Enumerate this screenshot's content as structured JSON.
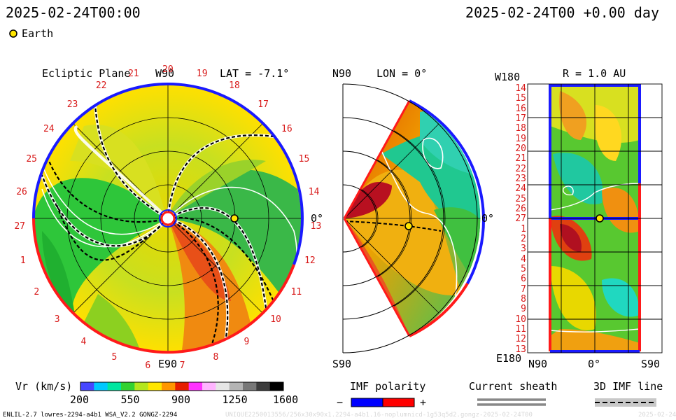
{
  "header": {
    "left_time": "2025-02-24T00:00",
    "right_time": "2025-02-24T00 +0.00 day",
    "earth_label": "Earth"
  },
  "panels": {
    "ecliptic": {
      "title": "Ecliptic Plane",
      "lat_label": "LAT = -7.1°",
      "w90": "W90",
      "e90": "E90",
      "zero": "0°"
    },
    "meridional": {
      "n90": "N90",
      "lon_label": "LON = 0°",
      "s90": "S90",
      "zero": "0°"
    },
    "radial": {
      "w180": "W180",
      "r_label": "R = 1.0 AU",
      "e180": "E180",
      "n90": "N90",
      "zero": "0°",
      "s90": "S90"
    }
  },
  "carrington_ticks_ecliptic": [
    "20",
    "21",
    "22",
    "23",
    "24",
    "25",
    "26",
    "27",
    "1",
    "2",
    "3",
    "4",
    "5",
    "6",
    "7",
    "8",
    "9",
    "10",
    "11",
    "12",
    "13",
    "14",
    "15",
    "16",
    "17",
    "18",
    "19"
  ],
  "carrington_ticks_radial": [
    "14",
    "15",
    "16",
    "17",
    "18",
    "19",
    "20",
    "21",
    "22",
    "23",
    "24",
    "25",
    "26",
    "27",
    "1",
    "2",
    "3",
    "4",
    "5",
    "6",
    "7",
    "8",
    "9",
    "10",
    "11",
    "12",
    "13"
  ],
  "legend": {
    "colorbar_label": "Vr (km/s)",
    "colorbar_ticks": [
      "200",
      "550",
      "900",
      "1250",
      "1600"
    ],
    "colorbar_colors": [
      "#4646ff",
      "#00c8ff",
      "#00e6a0",
      "#32d232",
      "#b4e61e",
      "#ffe600",
      "#ff9600",
      "#e61e00",
      "#ff32ff",
      "#ffb4ff",
      "#e6e6e6",
      "#b4b4b4",
      "#787878",
      "#3c3c3c",
      "#000000"
    ],
    "imf_label": "IMF polarity",
    "imf_minus": "−",
    "imf_plus": "+",
    "imf_neg_color": "#0000ff",
    "imf_pos_color": "#ff0000",
    "sheath_label": "Current sheath",
    "imf_line_label": "3D IMF line"
  },
  "footer": {
    "run_info": "ENLIL-2.7 lowres-2294-a4b1 WSA_V2.2 GONGZ-2294",
    "watermark": "UNIQUE2250013556/256x30x90x1.2294-a4b1.16-noplumnicd-1g53q5d2.gongz-2025-02-24T00",
    "watermark_tail": "2025-02-24"
  },
  "chart_data": {
    "type": "heatmap",
    "quantity": "Vr (km/s)",
    "vr_range": [
      200,
      1600
    ],
    "earth_position": {
      "lat_deg": -7.1,
      "lon_deg": 0,
      "r_au": 1.0
    }
  }
}
